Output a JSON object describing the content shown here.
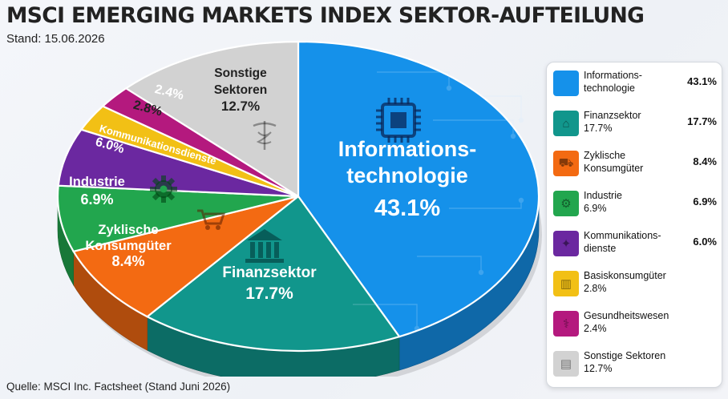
{
  "title": "MSCI EMERGING MARKETS INDEX SEKTOR-AUFTEILUNG",
  "subtitle": "Stand: 15.06.2026",
  "source": "Quelle: MSCI Inc. Factsheet (Stand Juni 2026)",
  "chart_data": {
    "type": "pie",
    "categories": [
      "Informationstechnologie",
      "Finanzsektor",
      "Zyklische Konsumgüter",
      "Industrie",
      "Kommunikationsdienste",
      "Basiskonsumgüter",
      "Gesundheitswesen",
      "Sonstige Sektoren"
    ],
    "values": [
      43.1,
      17.7,
      8.4,
      6.9,
      6.0,
      2.8,
      2.4,
      12.7
    ],
    "colors": [
      "#1591ea",
      "#11968c",
      "#f36a12",
      "#22a64e",
      "#6b28a0",
      "#f2c015",
      "#b4197e",
      "#d2d2d2"
    ],
    "slice_labels": [
      {
        "lines": [
          "Informations-",
          "technologie"
        ],
        "value": "43.1%"
      },
      {
        "lines": [
          "Finanzsektor"
        ],
        "value": "17.7%"
      },
      {
        "lines": [
          "Zyklische",
          "Konsumgüter"
        ],
        "value": "8.4%"
      },
      {
        "lines": [
          "Industrie"
        ],
        "value": "6.9%"
      },
      {
        "lines": [
          "Kommunikationsdienste"
        ],
        "value": "6.0%"
      },
      {
        "lines": [],
        "value": "2.8%"
      },
      {
        "lines": [],
        "value": "2.4%"
      },
      {
        "lines": [
          "Sonstige",
          "Sektoren"
        ],
        "value": "12.7%"
      }
    ],
    "icons": [
      "chip-icon",
      "bank-icon",
      "shopping-cart-icon",
      "gear-icon",
      "",
      "",
      "",
      "caduceus-icon"
    ],
    "legend_position": "right",
    "legend": [
      {
        "name": "Informations-\ntechnologie",
        "value": "43.1%"
      },
      {
        "name": "Finanzsektor\n17.7%",
        "value": "17.7%"
      },
      {
        "name": "Zyklische\nKonsumgüter",
        "value": "8.4%"
      },
      {
        "name": "Industrie\n6.9%",
        "value": "6.9%"
      },
      {
        "name": "Kommunikations-\ndienste",
        "value": "6.0%"
      },
      {
        "name": "Basiskonsumgüter\n2.8%",
        "value": ""
      },
      {
        "name": "Gesundheitswesen\n2.4%",
        "value": ""
      },
      {
        "name": "Sonstige Sektoren\n12.7%",
        "value": ""
      }
    ],
    "legend_icons": [
      "chip-icon",
      "bank-icon",
      "shopping-cart-icon",
      "gear-icon",
      "satellite-icon",
      "basket-icon",
      "caduceus-icon",
      "chart-icon"
    ]
  }
}
